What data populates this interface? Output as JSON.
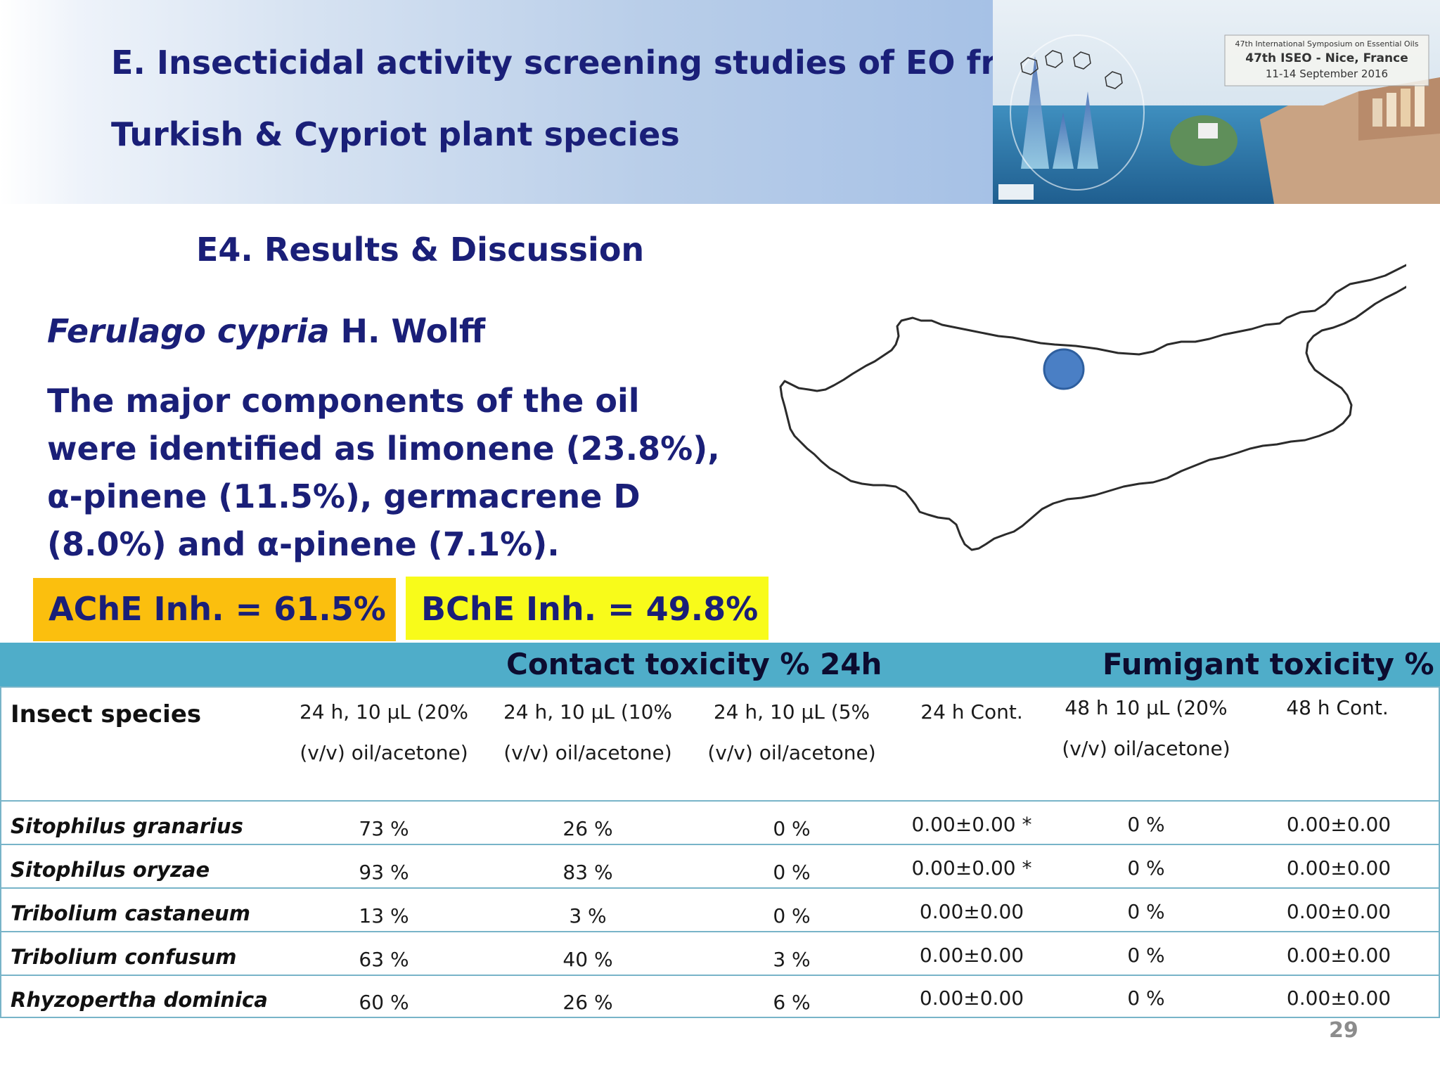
{
  "title": {
    "line1": "E. Insecticidal activity screening studies of EO from",
    "line2": "Turkish & Cypriot plant species"
  },
  "banner": {
    "line1": "47th International Symposium on Essential Oils",
    "line2": "47th ISEO - Nice, France",
    "line3": "11-14 September 2016"
  },
  "heading": "E4. Results & Discussion",
  "species": {
    "italic": "Ferulago cypria",
    "author": " H. Wolff"
  },
  "paragraph": "The major components of the oil were identified as limonene (23.8%), α-pinene (11.5%), germacrene D (8.0%) and α-pinene (7.1%).",
  "ache": "AChE Inh. = 61.5%",
  "bche": "BChE Inh. = 49.8%",
  "table": {
    "group_contact": "Contact toxicity % 24h",
    "group_fumigant": "Fumigant toxicity %",
    "insect_header": "Insect species",
    "col_headers": [
      [
        "24 h, 10 µL (20%",
        "(v/v) oil/acetone)"
      ],
      [
        "24 h, 10 µL (10%",
        "(v/v) oil/acetone)"
      ],
      [
        "24 h, 10 µL (5%",
        "(v/v) oil/acetone)"
      ],
      [
        "24 h Cont.",
        ""
      ],
      [
        "48 h 10 µL (20%",
        "(v/v) oil/acetone)"
      ],
      [
        "48 h Cont.",
        ""
      ]
    ],
    "rows": [
      {
        "name": "Sitophilus granarius",
        "cells": [
          "73 %",
          "26 %",
          "0 %",
          "0.00±0.00 *",
          "0 %",
          "0.00±0.00"
        ]
      },
      {
        "name": "Sitophilus oryzae",
        "cells": [
          "93 %",
          "83 %",
          "0 %",
          "0.00±0.00 *",
          "0 %",
          "0.00±0.00"
        ]
      },
      {
        "name": "Tribolium castaneum",
        "cells": [
          "13 %",
          "3 %",
          "0 %",
          "0.00±0.00",
          "0 %",
          "0.00±0.00"
        ]
      },
      {
        "name": "Tribolium confusum",
        "cells": [
          "63 %",
          "40 %",
          "3 %",
          "0.00±0.00",
          "0 %",
          "0.00±0.00"
        ]
      },
      {
        "name": "Rhyzopertha dominica",
        "cells": [
          "60 %",
          "26 %",
          "6 %",
          "0.00±0.00",
          "0 %",
          "0.00±0.00"
        ]
      }
    ]
  },
  "page_number": "29"
}
